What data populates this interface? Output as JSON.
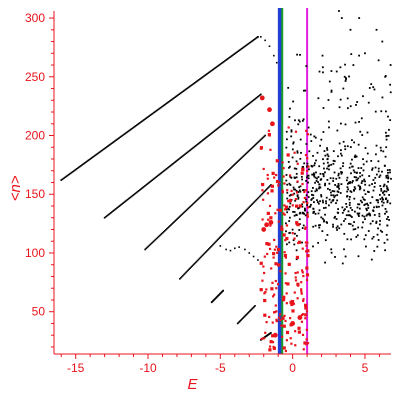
{
  "chart_data": {
    "type": "scatter",
    "xlabel": "E",
    "ylabel": "<n>",
    "xlim": [
      -16.5,
      6.8
    ],
    "ylim": [
      14,
      306
    ],
    "x_ticks": [
      -15,
      -10,
      -5,
      0,
      5
    ],
    "x_tick_labels": [
      "-15",
      "-10",
      "-5",
      "0",
      "5"
    ],
    "y_ticks": [
      50,
      100,
      150,
      200,
      250,
      300
    ],
    "y_tick_labels": [
      "50",
      "100",
      "150",
      "200",
      "250",
      "300"
    ],
    "grid": false,
    "colors": {
      "axis": "#e8141b",
      "black_points": "#000000",
      "red_points": "#e8141b",
      "blue_line": "#1f3fd6",
      "green_line": "#1a9a2a",
      "magenta_line": "#e01ee0"
    },
    "vertical_lines": [
      {
        "x": -0.85,
        "color": "#1f3fd6"
      },
      {
        "x": -0.72,
        "color": "#1a9a2a"
      },
      {
        "x": 1.0,
        "color": "#e01ee0"
      }
    ],
    "black_branches": [
      {
        "x0": -16.0,
        "y0": 162,
        "x1": -2.4,
        "y1": 284
      },
      {
        "x0": -13.0,
        "y0": 130,
        "x1": -2.2,
        "y1": 235
      },
      {
        "x0": -10.2,
        "y0": 103,
        "x1": -1.9,
        "y1": 200
      },
      {
        "x0": -7.8,
        "y0": 78,
        "x1": -1.5,
        "y1": 158
      },
      {
        "x0": -5.6,
        "y0": 58,
        "x1": -4.8,
        "y1": 68
      },
      {
        "x0": -3.8,
        "y0": 40,
        "x1": -2.6,
        "y1": 55
      },
      {
        "x0": -2.2,
        "y0": 26,
        "x1": -1.5,
        "y1": 32
      }
    ],
    "black_top_hook": [
      [
        -2.4,
        284
      ],
      [
        -2.2,
        284
      ],
      [
        -1.9,
        281
      ],
      [
        -1.6,
        276
      ],
      [
        -1.3,
        268
      ],
      [
        -1.1,
        262
      ]
    ],
    "black_mid_fragment": [
      [
        -5.0,
        106
      ],
      [
        -4.6,
        103
      ],
      [
        -4.3,
        102
      ],
      [
        -4.0,
        104
      ],
      [
        -3.7,
        105
      ],
      [
        -3.3,
        103
      ],
      [
        -3.0,
        100
      ],
      [
        -2.7,
        97
      ],
      [
        -2.4,
        94
      ]
    ],
    "black_cloud": {
      "x_range": [
        -0.5,
        6.8
      ],
      "y_range": [
        60,
        306
      ],
      "count": 650,
      "center_y": 150,
      "spread_y": 32,
      "upper_tail": [
        [
          3.2,
          306
        ],
        [
          3.4,
          300
        ],
        [
          4.0,
          290
        ],
        [
          4.6,
          300
        ],
        [
          5.8,
          290
        ],
        [
          6.2,
          280
        ],
        [
          5.0,
          270
        ],
        [
          4.2,
          260
        ],
        [
          3.6,
          250
        ],
        [
          6.4,
          250
        ]
      ]
    },
    "red_band": {
      "x_range": [
        -2.2,
        1.1
      ],
      "y_range": [
        16,
        235
      ],
      "count": 230,
      "notable": [
        [
          -2.1,
          232
        ],
        [
          -1.6,
          222
        ],
        [
          -1.4,
          210
        ],
        [
          -2.0,
          120
        ],
        [
          -1.8,
          124
        ],
        [
          -1.5,
          126
        ],
        [
          0.0,
          40
        ],
        [
          0.5,
          45
        ],
        [
          -1.2,
          30
        ]
      ]
    }
  }
}
